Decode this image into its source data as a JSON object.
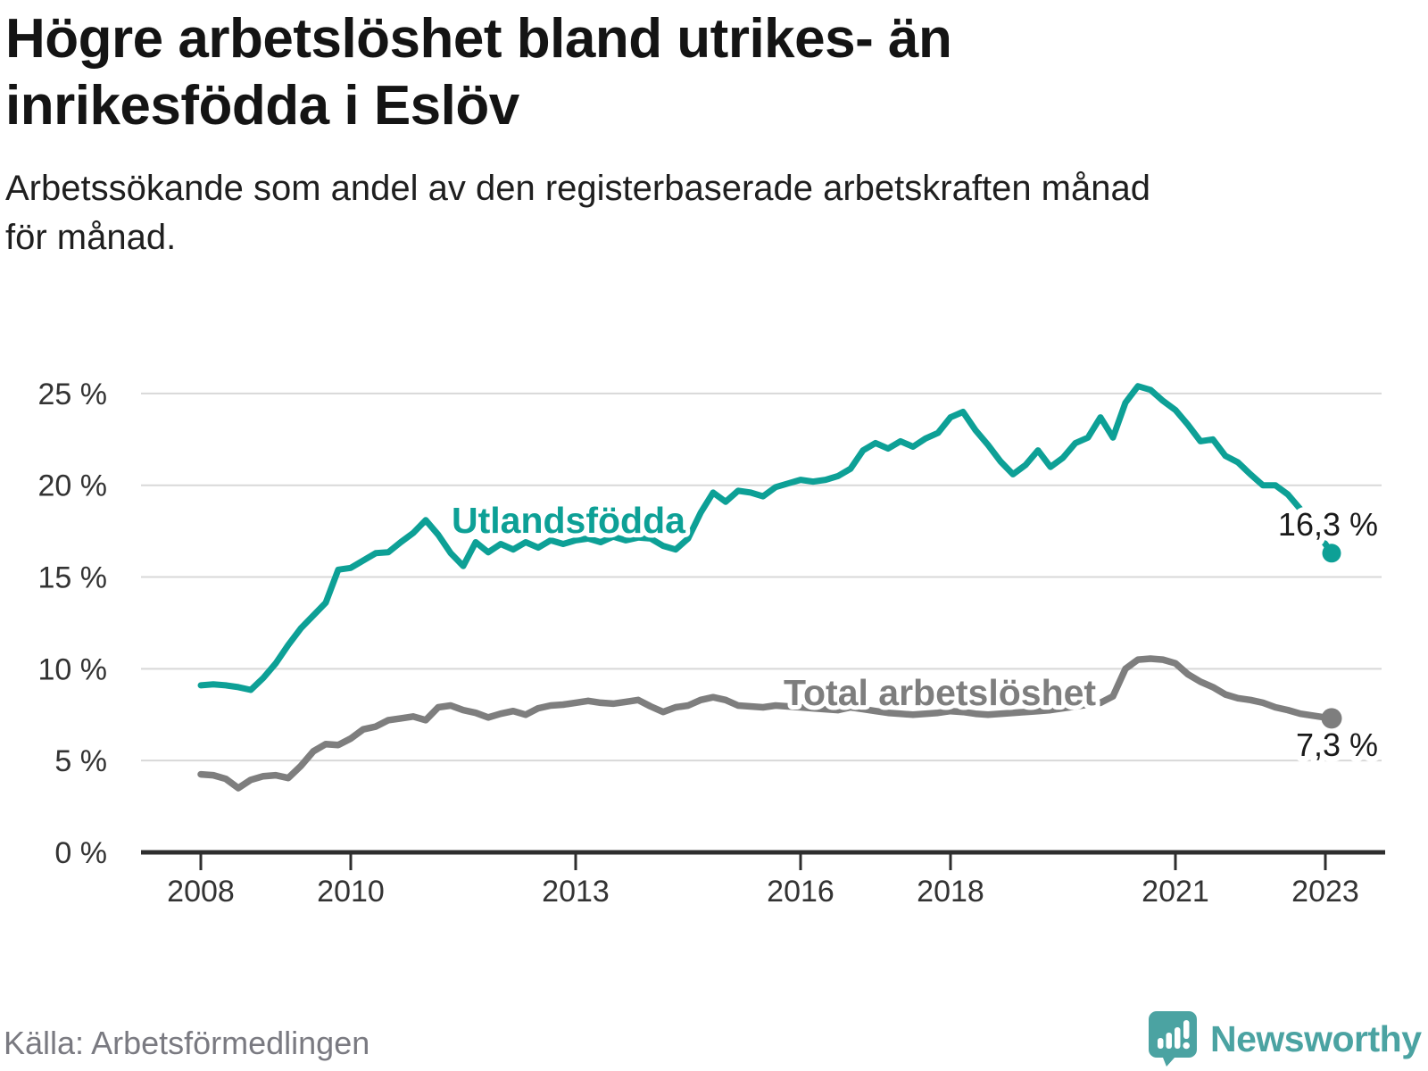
{
  "header": {
    "title_lines": [
      "Högre arbetslöshet bland utrikes- än",
      "inrikesfödda i Eslöv"
    ],
    "subtitle_lines": [
      "Arbetssökande som andel av den registerbaserade arbetskraften månad",
      "för månad."
    ]
  },
  "source": {
    "label": "Källa: Arbetsförmedlingen"
  },
  "branding": {
    "wordmark": "Newsworthy",
    "logo_icon": "speech-bubble-bar-chart-icon"
  },
  "colors": {
    "series_foreign_born": "#0da096",
    "series_total": "#7e7e7e",
    "grid": "#d8d8d8",
    "axis": "#2e2e2e",
    "tick_text": "#333333",
    "value_text": "#1a1a1a",
    "logo": "#4ba3a2"
  },
  "chart_data": {
    "type": "line",
    "unit": "%",
    "x_axis": {
      "ticks": [
        "2008",
        "2010",
        "2013",
        "2016",
        "2018",
        "2021",
        "2023"
      ],
      "range_months": [
        "2008-01",
        "2023-02"
      ],
      "grid": false
    },
    "y_axis": {
      "ticks": [
        {
          "value": 0,
          "label": "0 %"
        },
        {
          "value": 5,
          "label": "5 %"
        },
        {
          "value": 10,
          "label": "10 %"
        },
        {
          "value": 15,
          "label": "15 %"
        },
        {
          "value": 20,
          "label": "20 %"
        },
        {
          "value": 25,
          "label": "25 %"
        }
      ],
      "range": [
        0,
        26.2
      ],
      "grid": true
    },
    "legend_position": "inline-labels",
    "series": [
      {
        "name": "Utlandsfödda",
        "color": "#0da096",
        "end_label": "16,3 %",
        "end_value": 16.3,
        "points": [
          [
            "2008-01",
            9.1
          ],
          [
            "2008-03",
            9.15
          ],
          [
            "2008-05",
            9.1
          ],
          [
            "2008-07",
            9.0
          ],
          [
            "2008-09",
            8.85
          ],
          [
            "2008-11",
            9.5
          ],
          [
            "2009-01",
            10.3
          ],
          [
            "2009-03",
            11.3
          ],
          [
            "2009-05",
            12.2
          ],
          [
            "2009-07",
            12.9
          ],
          [
            "2009-09",
            13.6
          ],
          [
            "2009-11",
            15.4
          ],
          [
            "2010-01",
            15.5
          ],
          [
            "2010-03",
            15.9
          ],
          [
            "2010-05",
            16.3
          ],
          [
            "2010-07",
            16.35
          ],
          [
            "2010-09",
            16.9
          ],
          [
            "2010-11",
            17.4
          ],
          [
            "2011-01",
            18.1
          ],
          [
            "2011-03",
            17.3
          ],
          [
            "2011-05",
            16.3
          ],
          [
            "2011-07",
            15.6
          ],
          [
            "2011-09",
            16.9
          ],
          [
            "2011-11",
            16.35
          ],
          [
            "2012-01",
            16.8
          ],
          [
            "2012-03",
            16.5
          ],
          [
            "2012-05",
            16.9
          ],
          [
            "2012-07",
            16.6
          ],
          [
            "2012-09",
            17.0
          ],
          [
            "2012-11",
            16.8
          ],
          [
            "2013-01",
            17.0
          ],
          [
            "2013-03",
            17.1
          ],
          [
            "2013-05",
            16.9
          ],
          [
            "2013-07",
            17.2
          ],
          [
            "2013-09",
            17.0
          ],
          [
            "2013-11",
            17.15
          ],
          [
            "2014-01",
            17.1
          ],
          [
            "2014-03",
            16.7
          ],
          [
            "2014-05",
            16.5
          ],
          [
            "2014-07",
            17.1
          ],
          [
            "2014-09",
            18.5
          ],
          [
            "2014-11",
            19.6
          ],
          [
            "2015-01",
            19.1
          ],
          [
            "2015-03",
            19.7
          ],
          [
            "2015-05",
            19.6
          ],
          [
            "2015-07",
            19.4
          ],
          [
            "2015-09",
            19.9
          ],
          [
            "2015-11",
            20.1
          ],
          [
            "2016-01",
            20.3
          ],
          [
            "2016-03",
            20.2
          ],
          [
            "2016-05",
            20.3
          ],
          [
            "2016-07",
            20.5
          ],
          [
            "2016-09",
            20.9
          ],
          [
            "2016-11",
            21.9
          ],
          [
            "2017-01",
            22.3
          ],
          [
            "2017-03",
            22.0
          ],
          [
            "2017-05",
            22.4
          ],
          [
            "2017-07",
            22.1
          ],
          [
            "2017-09",
            22.55
          ],
          [
            "2017-11",
            22.85
          ],
          [
            "2018-01",
            23.7
          ],
          [
            "2018-03",
            24.0
          ],
          [
            "2018-05",
            23.0
          ],
          [
            "2018-07",
            22.2
          ],
          [
            "2018-09",
            21.3
          ],
          [
            "2018-11",
            20.6
          ],
          [
            "2019-01",
            21.1
          ],
          [
            "2019-03",
            21.9
          ],
          [
            "2019-05",
            21.0
          ],
          [
            "2019-07",
            21.5
          ],
          [
            "2019-09",
            22.3
          ],
          [
            "2019-11",
            22.6
          ],
          [
            "2020-01",
            23.7
          ],
          [
            "2020-03",
            22.6
          ],
          [
            "2020-05",
            24.5
          ],
          [
            "2020-07",
            25.4
          ],
          [
            "2020-09",
            25.2
          ],
          [
            "2020-11",
            24.6
          ],
          [
            "2021-01",
            24.1
          ],
          [
            "2021-03",
            23.3
          ],
          [
            "2021-05",
            22.4
          ],
          [
            "2021-07",
            22.5
          ],
          [
            "2021-09",
            21.6
          ],
          [
            "2021-11",
            21.25
          ],
          [
            "2022-01",
            20.6
          ],
          [
            "2022-03",
            20.0
          ],
          [
            "2022-05",
            20.0
          ],
          [
            "2022-07",
            19.5
          ],
          [
            "2022-09",
            18.7
          ],
          [
            "2022-11",
            17.6
          ],
          [
            "2023-01",
            16.8
          ],
          [
            "2023-02",
            16.3
          ]
        ]
      },
      {
        "name": "Total arbetslöshet",
        "color": "#7e7e7e",
        "end_label": "7,3 %",
        "end_value": 7.3,
        "points": [
          [
            "2008-01",
            4.25
          ],
          [
            "2008-03",
            4.2
          ],
          [
            "2008-05",
            4.0
          ],
          [
            "2008-07",
            3.5
          ],
          [
            "2008-09",
            3.95
          ],
          [
            "2008-11",
            4.15
          ],
          [
            "2009-01",
            4.2
          ],
          [
            "2009-03",
            4.05
          ],
          [
            "2009-05",
            4.7
          ],
          [
            "2009-07",
            5.5
          ],
          [
            "2009-09",
            5.9
          ],
          [
            "2009-11",
            5.85
          ],
          [
            "2010-01",
            6.2
          ],
          [
            "2010-03",
            6.7
          ],
          [
            "2010-05",
            6.85
          ],
          [
            "2010-07",
            7.2
          ],
          [
            "2010-09",
            7.3
          ],
          [
            "2010-11",
            7.4
          ],
          [
            "2011-01",
            7.2
          ],
          [
            "2011-03",
            7.9
          ],
          [
            "2011-05",
            8.0
          ],
          [
            "2011-07",
            7.75
          ],
          [
            "2011-09",
            7.6
          ],
          [
            "2011-11",
            7.35
          ],
          [
            "2012-01",
            7.55
          ],
          [
            "2012-03",
            7.7
          ],
          [
            "2012-05",
            7.5
          ],
          [
            "2012-07",
            7.85
          ],
          [
            "2012-09",
            8.0
          ],
          [
            "2012-11",
            8.05
          ],
          [
            "2013-01",
            8.15
          ],
          [
            "2013-03",
            8.25
          ],
          [
            "2013-05",
            8.15
          ],
          [
            "2013-07",
            8.1
          ],
          [
            "2013-09",
            8.2
          ],
          [
            "2013-11",
            8.3
          ],
          [
            "2014-01",
            7.95
          ],
          [
            "2014-03",
            7.65
          ],
          [
            "2014-05",
            7.9
          ],
          [
            "2014-07",
            8.0
          ],
          [
            "2014-09",
            8.3
          ],
          [
            "2014-11",
            8.45
          ],
          [
            "2015-01",
            8.3
          ],
          [
            "2015-03",
            8.0
          ],
          [
            "2015-05",
            7.95
          ],
          [
            "2015-07",
            7.9
          ],
          [
            "2015-09",
            8.0
          ],
          [
            "2015-11",
            7.95
          ],
          [
            "2016-01",
            7.9
          ],
          [
            "2016-03",
            7.85
          ],
          [
            "2016-05",
            7.8
          ],
          [
            "2016-07",
            7.75
          ],
          [
            "2016-09",
            7.9
          ],
          [
            "2016-11",
            7.8
          ],
          [
            "2017-01",
            7.7
          ],
          [
            "2017-03",
            7.6
          ],
          [
            "2017-05",
            7.55
          ],
          [
            "2017-07",
            7.5
          ],
          [
            "2017-09",
            7.55
          ],
          [
            "2017-11",
            7.6
          ],
          [
            "2018-01",
            7.7
          ],
          [
            "2018-03",
            7.65
          ],
          [
            "2018-05",
            7.55
          ],
          [
            "2018-07",
            7.5
          ],
          [
            "2018-09",
            7.55
          ],
          [
            "2018-11",
            7.6
          ],
          [
            "2019-01",
            7.65
          ],
          [
            "2019-03",
            7.7
          ],
          [
            "2019-05",
            7.75
          ],
          [
            "2019-07",
            7.85
          ],
          [
            "2019-09",
            7.95
          ],
          [
            "2019-11",
            8.05
          ],
          [
            "2020-01",
            8.15
          ],
          [
            "2020-03",
            8.5
          ],
          [
            "2020-05",
            10.0
          ],
          [
            "2020-07",
            10.5
          ],
          [
            "2020-09",
            10.55
          ],
          [
            "2020-11",
            10.5
          ],
          [
            "2021-01",
            10.3
          ],
          [
            "2021-03",
            9.7
          ],
          [
            "2021-05",
            9.3
          ],
          [
            "2021-07",
            9.0
          ],
          [
            "2021-09",
            8.6
          ],
          [
            "2021-11",
            8.4
          ],
          [
            "2022-01",
            8.3
          ],
          [
            "2022-03",
            8.15
          ],
          [
            "2022-05",
            7.9
          ],
          [
            "2022-07",
            7.75
          ],
          [
            "2022-09",
            7.55
          ],
          [
            "2022-11",
            7.45
          ],
          [
            "2023-01",
            7.35
          ],
          [
            "2023-02",
            7.3
          ]
        ]
      }
    ]
  }
}
